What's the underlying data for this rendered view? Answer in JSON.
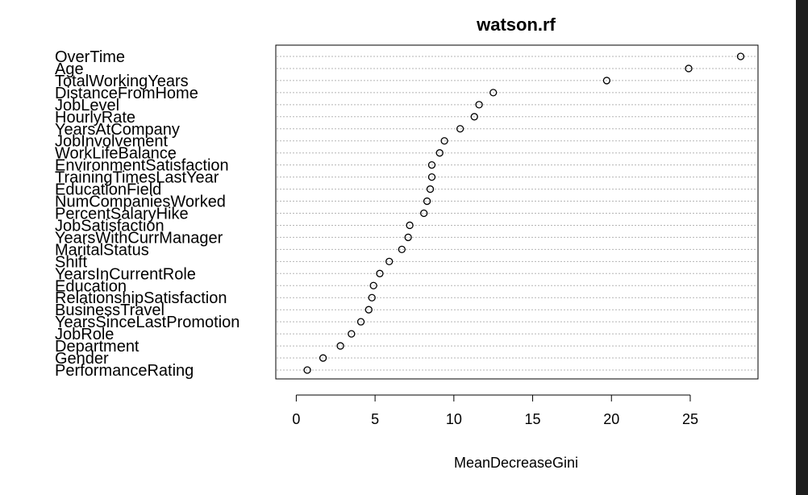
{
  "chart_data": {
    "type": "scatter",
    "title": "watson.rf",
    "xlabel": "MeanDecreaseGini",
    "ylabel": "",
    "xlim": [
      -1.3,
      29.3
    ],
    "xticks": [
      0,
      5,
      10,
      15,
      20,
      25
    ],
    "grid": "dotted horizontal lines per variable",
    "categories": [
      "OverTime",
      "Age",
      "TotalWorkingYears",
      "DistanceFromHome",
      "JobLevel",
      "HourlyRate",
      "YearsAtCompany",
      "JobInvolvement",
      "WorkLifeBalance",
      "EnvironmentSatisfaction",
      "TrainingTimesLastYear",
      "EducationField",
      "NumCompaniesWorked",
      "PercentSalaryHike",
      "JobSatisfaction",
      "YearsWithCurrManager",
      "MaritalStatus",
      "Shift",
      "YearsInCurrentRole",
      "Education",
      "RelationshipSatisfaction",
      "BusinessTravel",
      "YearsSinceLastPromotion",
      "JobRole",
      "Department",
      "Gender",
      "PerformanceRating"
    ],
    "values": [
      28.2,
      24.9,
      19.7,
      12.5,
      11.6,
      11.3,
      10.4,
      9.4,
      9.1,
      8.6,
      8.6,
      8.5,
      8.3,
      8.1,
      7.2,
      7.1,
      6.7,
      5.9,
      5.3,
      4.9,
      4.8,
      4.6,
      4.1,
      3.5,
      2.8,
      1.7,
      0.7
    ]
  }
}
